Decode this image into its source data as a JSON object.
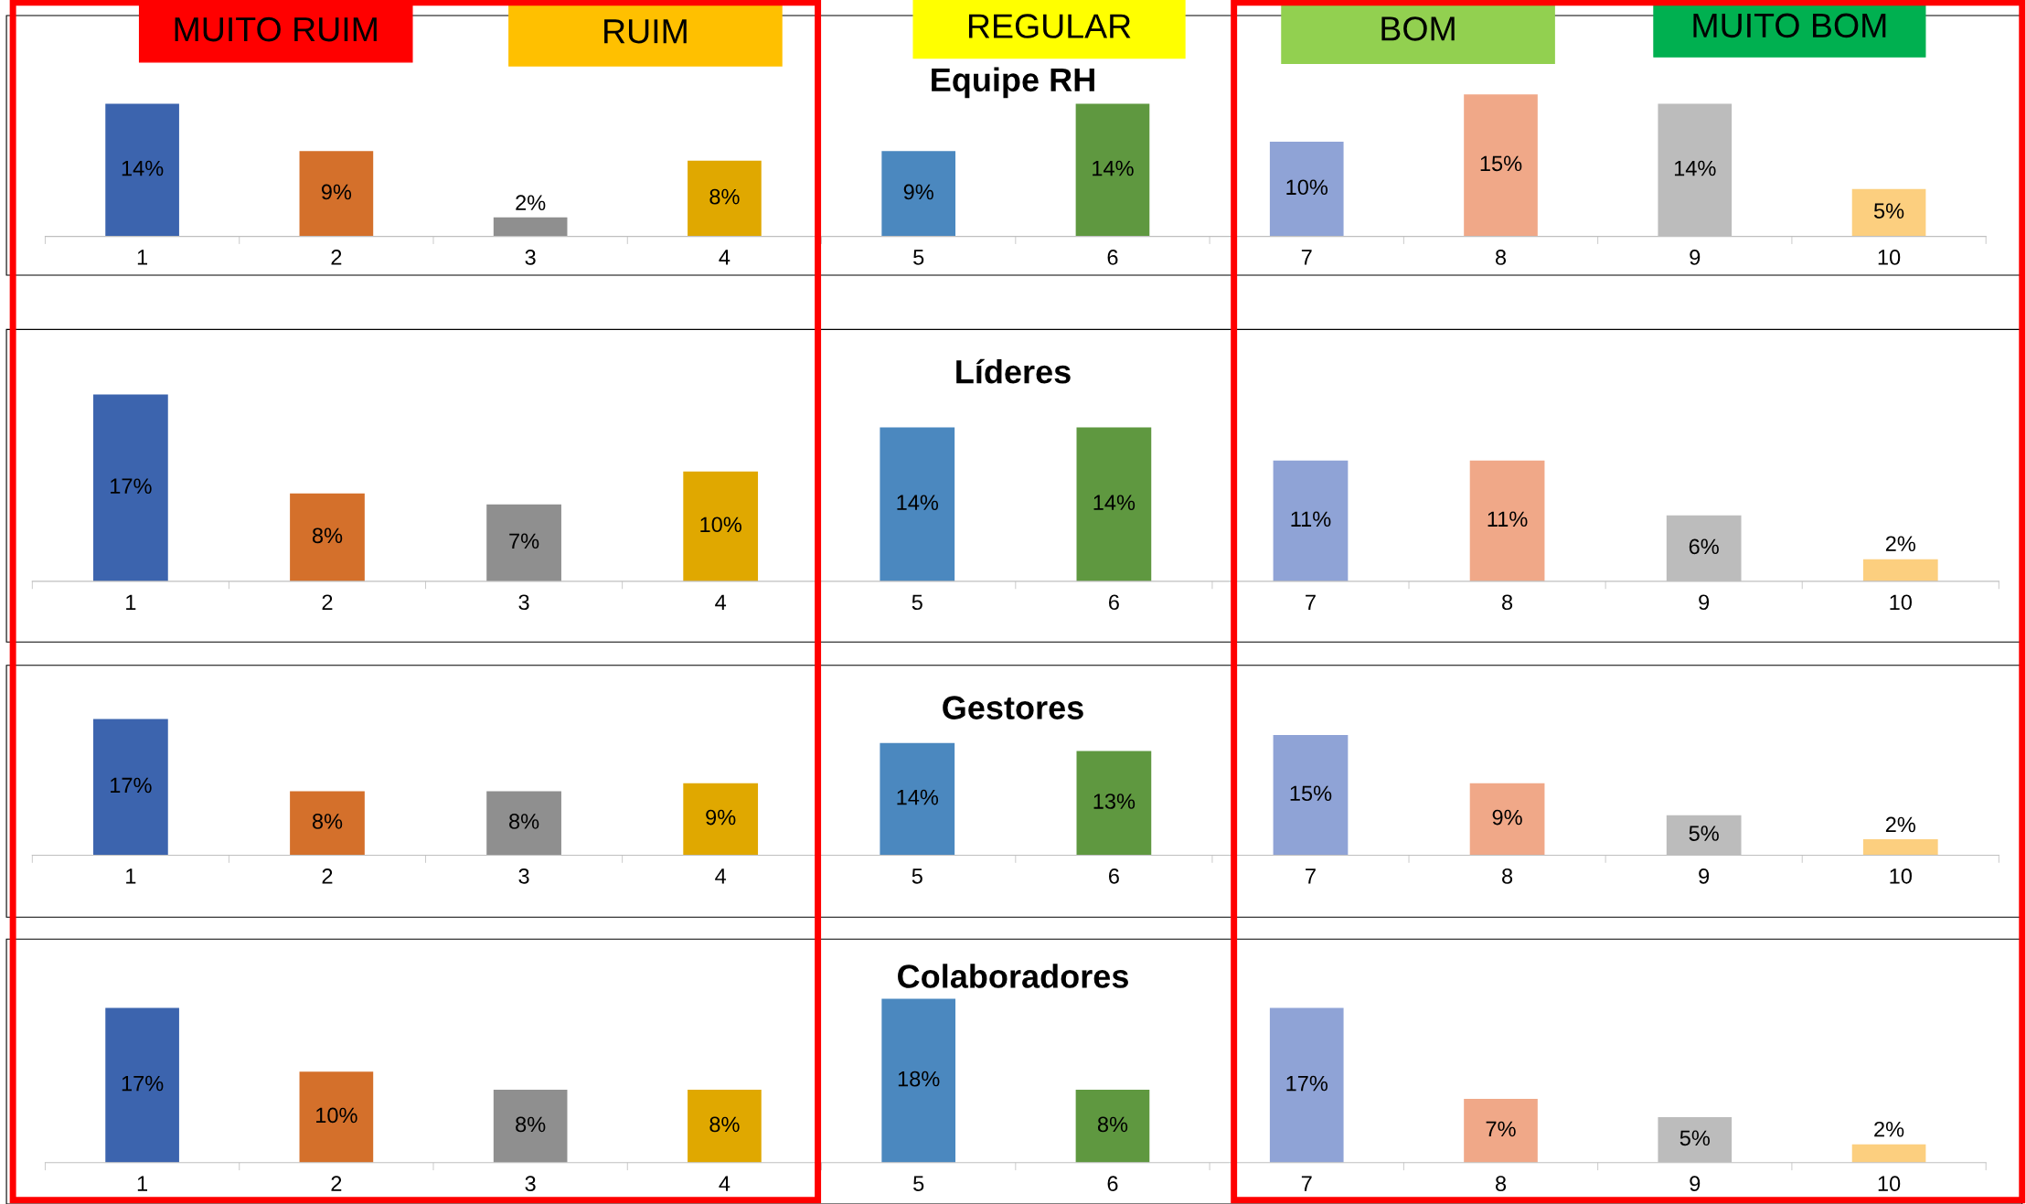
{
  "chart_data": [
    {
      "type": "bar",
      "title": "Equipe RH",
      "categories": [
        "1",
        "2",
        "3",
        "4",
        "5",
        "6",
        "7",
        "8",
        "9",
        "10"
      ],
      "values": [
        14,
        9,
        2,
        8,
        9,
        14,
        10,
        15,
        14,
        5
      ],
      "value_labels": [
        "14%",
        "9%",
        "2%",
        "8%",
        "9%",
        "14%",
        "10%",
        "15%",
        "14%",
        "5%"
      ],
      "colors": [
        "#3c64ae",
        "#d4702b",
        "#8f8f8f",
        "#e0a800",
        "#4b88bf",
        "#5f9840",
        "#8fa3d6",
        "#f0a888",
        "#bcbcbc",
        "#fccf7f"
      ],
      "annotations": [
        "MUITO RUIM",
        "RUIM",
        "REGULAR",
        "BOM",
        "MUITO BOM"
      ]
    },
    {
      "type": "bar",
      "title": "Líderes",
      "categories": [
        "1",
        "2",
        "3",
        "4",
        "5",
        "6",
        "7",
        "8",
        "9",
        "10"
      ],
      "values": [
        17,
        8,
        7,
        10,
        14,
        14,
        11,
        11,
        6,
        2
      ],
      "value_labels": [
        "17%",
        "8%",
        "7%",
        "10%",
        "14%",
        "14%",
        "11%",
        "11%",
        "6%",
        "2%"
      ],
      "colors": [
        "#3c64ae",
        "#d4702b",
        "#8f8f8f",
        "#e0a800",
        "#4b88bf",
        "#5f9840",
        "#8fa3d6",
        "#f0a888",
        "#bcbcbc",
        "#fccf7f"
      ]
    },
    {
      "type": "bar",
      "title": "Gestores",
      "categories": [
        "1",
        "2",
        "3",
        "4",
        "5",
        "6",
        "7",
        "8",
        "9",
        "10"
      ],
      "values": [
        17,
        8,
        8,
        9,
        14,
        13,
        15,
        9,
        5,
        2
      ],
      "value_labels": [
        "17%",
        "8%",
        "8%",
        "9%",
        "14%",
        "13%",
        "15%",
        "9%",
        "5%",
        "2%"
      ],
      "colors": [
        "#3c64ae",
        "#d4702b",
        "#8f8f8f",
        "#e0a800",
        "#4b88bf",
        "#5f9840",
        "#8fa3d6",
        "#f0a888",
        "#bcbcbc",
        "#fccf7f"
      ]
    },
    {
      "type": "bar",
      "title": "Colaboradores",
      "categories": [
        "1",
        "2",
        "3",
        "4",
        "5",
        "6",
        "7",
        "8",
        "9",
        "10"
      ],
      "values": [
        17,
        10,
        8,
        8,
        18,
        8,
        17,
        7,
        5,
        2
      ],
      "value_labels": [
        "17%",
        "10%",
        "8%",
        "8%",
        "18%",
        "8%",
        "17%",
        "7%",
        "5%",
        "2%"
      ],
      "colors": [
        "#3c64ae",
        "#d4702b",
        "#8f8f8f",
        "#e0a800",
        "#4b88bf",
        "#5f9840",
        "#8fa3d6",
        "#f0a888",
        "#bcbcbc",
        "#fccf7f"
      ]
    }
  ]
}
